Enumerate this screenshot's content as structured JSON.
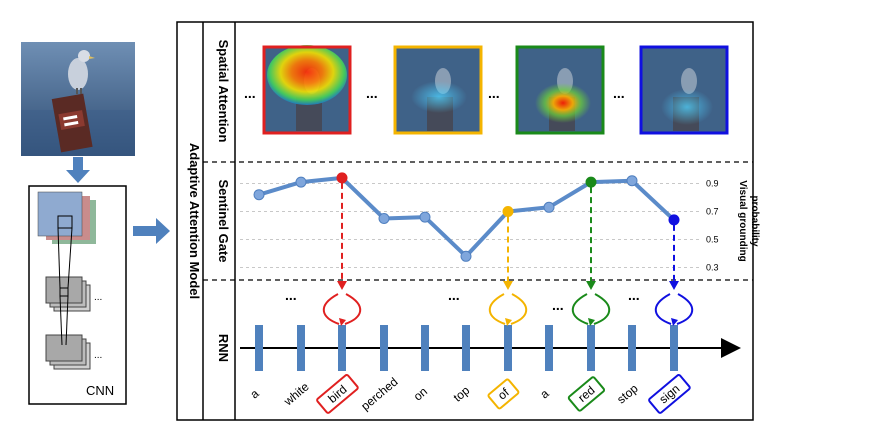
{
  "labels": {
    "cnn": "CNN",
    "model": "Adaptive Attention Model",
    "spatial": "Spatial Attention",
    "sentinel": "Sentinel Gate",
    "rnn": "RNN",
    "vg_line1": "Visual grounding",
    "vg_line2": "probability",
    "ellipsis": "..."
  },
  "gate_ticks": [
    "0.9",
    "0.7",
    "0.5",
    "0.3"
  ],
  "words": [
    "a",
    "white",
    "bird",
    "perched",
    "on",
    "top",
    "of",
    "a",
    "red",
    "stop",
    "sign"
  ],
  "highlighted_words": [
    {
      "index": 2,
      "color": "#e02020"
    },
    {
      "index": 6,
      "color": "#f4b400"
    },
    {
      "index": 8,
      "color": "#1a8a1a"
    },
    {
      "index": 10,
      "color": "#1010e0"
    }
  ],
  "attention_frames": [
    {
      "color": "#e02020",
      "focus": "bird"
    },
    {
      "color": "#f4b400",
      "focus": "of"
    },
    {
      "color": "#1a8a1a",
      "focus": "red"
    },
    {
      "color": "#1010e0",
      "focus": "sign"
    }
  ],
  "chart_data": {
    "type": "line",
    "title": "",
    "xlabel": "",
    "ylabel": "Visual grounding probability",
    "ylim": [
      0.2,
      1.0
    ],
    "categories": [
      "a",
      "white",
      "bird",
      "perched",
      "on",
      "top",
      "of",
      "a",
      "red",
      "stop",
      "sign"
    ],
    "series": [
      {
        "values": [
          0.82,
          0.91,
          0.94,
          0.65,
          0.66,
          0.38,
          0.7,
          0.73,
          0.91,
          0.92,
          0.64
        ]
      }
    ]
  },
  "colors": {
    "line": "#5b8bc9",
    "point": "#7fa6dc",
    "bar": "#4f81bd",
    "arrow_blue": "#4f81bd"
  }
}
